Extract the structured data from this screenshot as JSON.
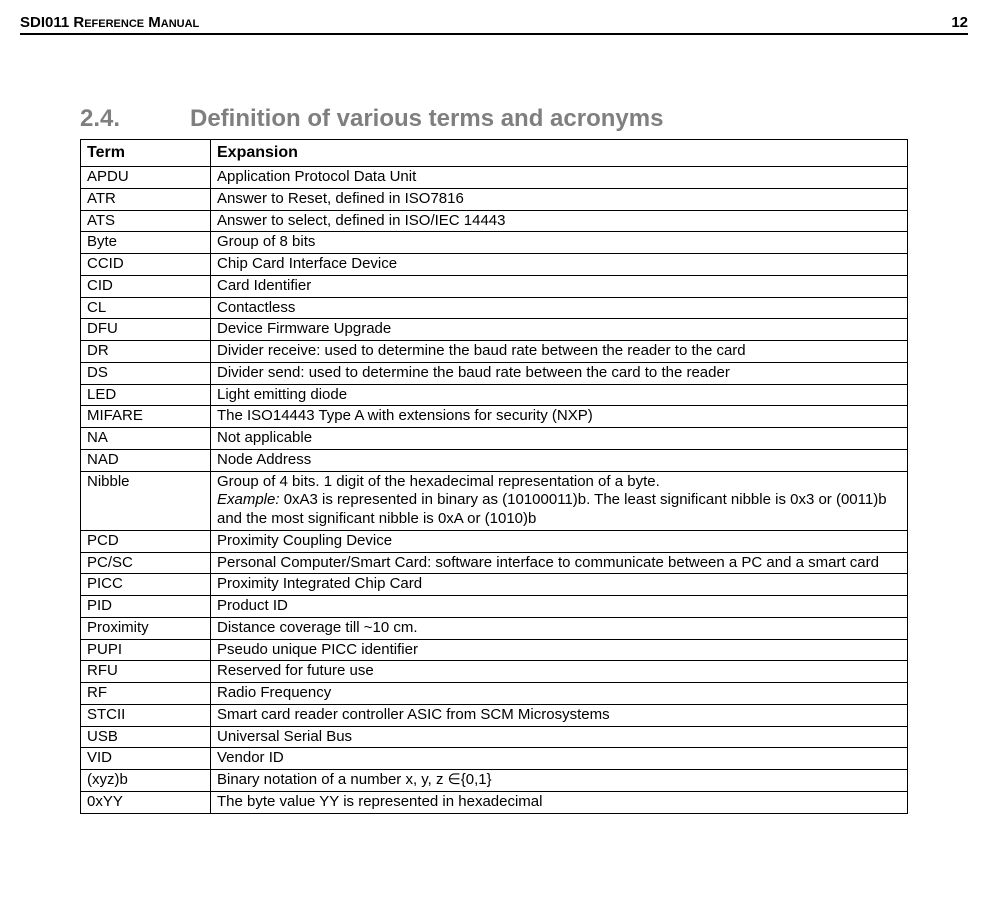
{
  "header": {
    "doc_title": "SDI011 ",
    "doc_title_caps": "Reference Manual",
    "page_number": "12"
  },
  "section": {
    "number": "2.4.",
    "title": "Definition of various terms and acronyms"
  },
  "table": {
    "head_term": "Term",
    "head_expansion": "Expansion",
    "rows": [
      {
        "term": "APDU",
        "exp": "Application Protocol Data Unit"
      },
      {
        "term": "ATR",
        "exp": "Answer to Reset, defined in ISO7816"
      },
      {
        "term": "ATS",
        "exp": "Answer to select, defined in ISO/IEC 14443"
      },
      {
        "term": "Byte",
        "exp": "Group of 8 bits"
      },
      {
        "term": "CCID",
        "exp": "Chip Card Interface Device"
      },
      {
        "term": "CID",
        "exp": "Card Identifier"
      },
      {
        "term": "CL",
        "exp": "Contactless"
      },
      {
        "term": "DFU",
        "exp": "Device Firmware Upgrade"
      },
      {
        "term": "DR",
        "exp": "Divider receive: used to determine the baud rate between the reader to the card"
      },
      {
        "term": "DS",
        "exp": "Divider send: used to determine the baud rate between the card to the reader"
      },
      {
        "term": "LED",
        "exp": "Light emitting diode"
      },
      {
        "term": "MIFARE",
        "exp": "The ISO14443 Type A with extensions for security (NXP)"
      },
      {
        "term": "NA",
        "exp": "Not applicable"
      },
      {
        "term": "NAD",
        "exp": "Node Address"
      },
      {
        "term": "Nibble",
        "exp_line1": "Group of 4 bits. 1 digit of the hexadecimal representation of a byte.",
        "exp_example_label": "Example:",
        "exp_example_rest": " 0xA3 is represented in binary as (10100011)b. The least significant nibble is 0x3 or (0011)b and the most significant nibble is 0xA or (1010)b"
      },
      {
        "term": "PCD",
        "exp": "Proximity Coupling Device"
      },
      {
        "term": "PC/SC",
        "exp": "Personal Computer/Smart Card: software interface to communicate between a PC and a smart card"
      },
      {
        "term": "PICC",
        "exp": "Proximity Integrated Chip Card"
      },
      {
        "term": "PID",
        "exp": "Product ID"
      },
      {
        "term": "Proximity",
        "exp": "Distance coverage till ~10 cm."
      },
      {
        "term": "PUPI",
        "exp": "Pseudo unique PICC identifier"
      },
      {
        "term": "RFU",
        "exp": "Reserved for future use"
      },
      {
        "term": "RF",
        "exp": "Radio Frequency"
      },
      {
        "term": "STCII",
        "exp": "Smart card reader controller ASIC from SCM Microsystems"
      },
      {
        "term": "USB",
        "exp": "Universal Serial Bus"
      },
      {
        "term": "VID",
        "exp": "Vendor ID"
      },
      {
        "term": "(xyz)b",
        "exp": "Binary notation of a number x, y, z ∈{0,1}"
      },
      {
        "term": "0xYY",
        "exp": "The byte value YY is represented in hexadecimal"
      }
    ]
  }
}
